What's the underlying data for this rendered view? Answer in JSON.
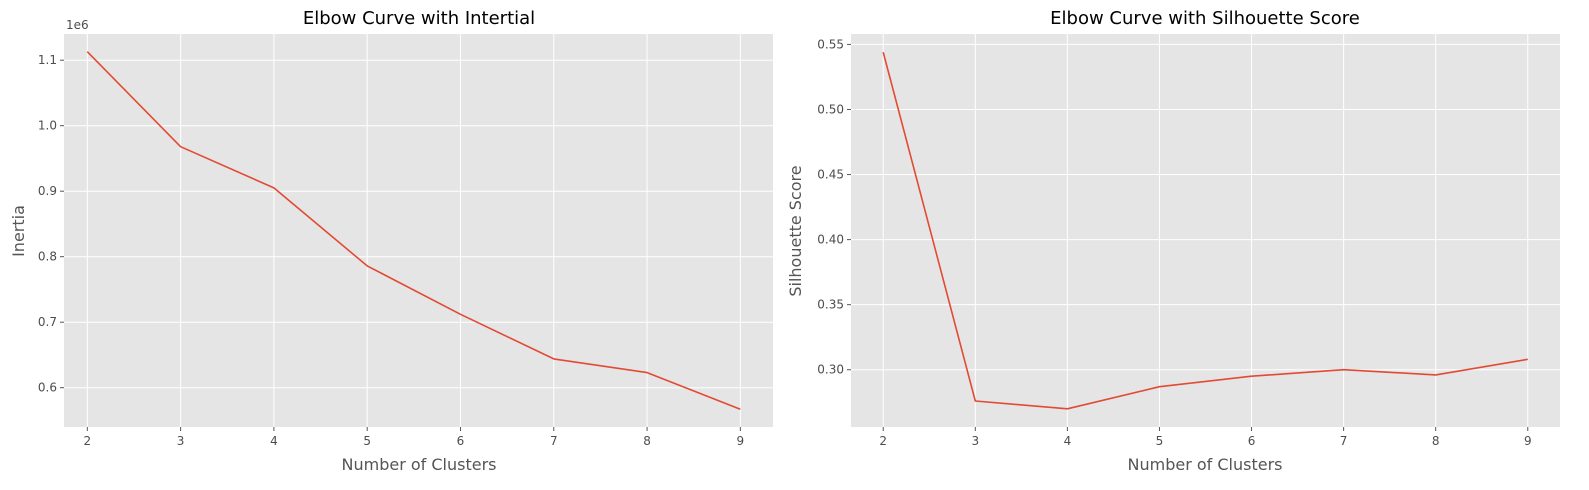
{
  "figure": {
    "background": "#ffffff",
    "plot_background": "#e5e5e5",
    "grid_color": "#ffffff",
    "line_color": "#e24a33"
  },
  "chart_data": [
    {
      "type": "line",
      "title": "Elbow Curve with Intertial",
      "xlabel": "Number of Clusters",
      "ylabel": "Inertia",
      "y_offset_label": "1e6",
      "grid": true,
      "x": [
        2,
        3,
        4,
        5,
        6,
        7,
        8,
        9
      ],
      "series": [
        {
          "values": [
            1.113,
            0.968,
            0.905,
            0.786,
            0.712,
            0.644,
            0.623,
            0.567
          ],
          "color": "#e24a33"
        }
      ],
      "xlim": [
        1.75,
        9.35
      ],
      "ylim": [
        0.54,
        1.14
      ],
      "xticks": [
        2,
        3,
        4,
        5,
        6,
        7,
        8,
        9
      ],
      "xtick_labels": [
        "2",
        "3",
        "4",
        "5",
        "6",
        "7",
        "8",
        "9"
      ],
      "yticks": [
        0.6,
        0.7,
        0.8,
        0.9,
        1.0,
        1.1
      ],
      "ytick_labels": [
        "0.6",
        "0.7",
        "0.8",
        "0.9",
        "1.0",
        "1.1"
      ]
    },
    {
      "type": "line",
      "title": "Elbow Curve with Silhouette Score",
      "xlabel": "Number of Clusters",
      "ylabel": "Silhouette Score",
      "grid": true,
      "x": [
        2,
        3,
        4,
        5,
        6,
        7,
        8,
        9
      ],
      "series": [
        {
          "values": [
            0.544,
            0.276,
            0.27,
            0.287,
            0.295,
            0.3,
            0.296,
            0.308
          ],
          "color": "#e24a33"
        }
      ],
      "xlim": [
        1.65,
        9.35
      ],
      "ylim": [
        0.256,
        0.558
      ],
      "xticks": [
        2,
        3,
        4,
        5,
        6,
        7,
        8,
        9
      ],
      "xtick_labels": [
        "2",
        "3",
        "4",
        "5",
        "6",
        "7",
        "8",
        "9"
      ],
      "yticks": [
        0.3,
        0.35,
        0.4,
        0.45,
        0.5,
        0.55
      ],
      "ytick_labels": [
        "0.30",
        "0.35",
        "0.40",
        "0.45",
        "0.50",
        "0.55"
      ]
    }
  ]
}
